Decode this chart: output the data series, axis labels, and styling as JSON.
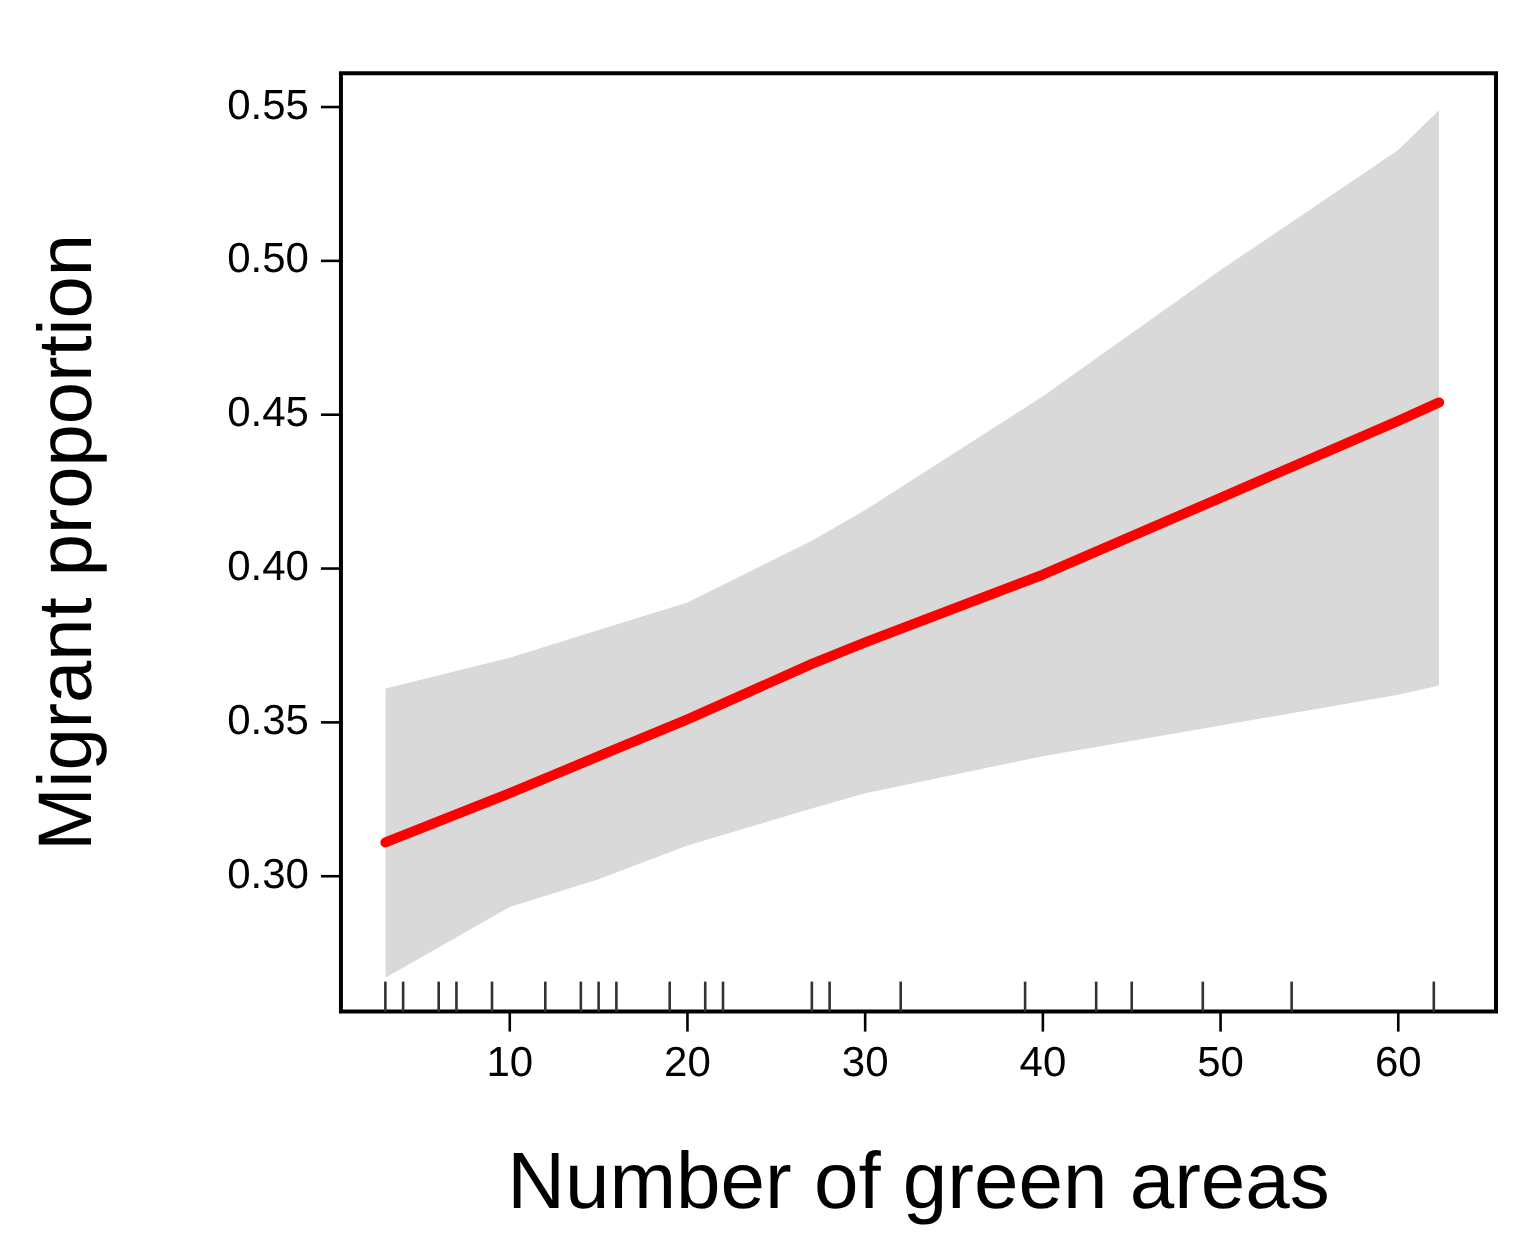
{
  "chart_data": {
    "type": "line",
    "xlabel": "Number of green areas",
    "ylabel": "Migrant proportion",
    "xlim": [
      0.5,
      65.5
    ],
    "ylim": [
      0.256,
      0.561
    ],
    "xticks": [
      {
        "value": 3,
        "label": null
      },
      {
        "value": 4,
        "label": null
      },
      {
        "value": 6,
        "label": null
      },
      {
        "value": 7,
        "label": null
      },
      {
        "value": 9,
        "label": null
      },
      10,
      {
        "value": 12,
        "label": null
      },
      {
        "value": 14,
        "label": null
      },
      {
        "value": 15,
        "label": null
      },
      {
        "value": 16,
        "label": null
      },
      {
        "value": 19,
        "label": null
      },
      20,
      {
        "value": 21,
        "label": null
      },
      {
        "value": 22,
        "label": null
      },
      {
        "value": 27,
        "label": null
      },
      {
        "value": 28,
        "label": null
      },
      30,
      {
        "value": 32,
        "label": null
      },
      {
        "value": 39,
        "label": null
      },
      40,
      {
        "value": 43,
        "label": null
      },
      {
        "value": 45,
        "label": null
      },
      {
        "value": 49,
        "label": null
      },
      50,
      {
        "value": 54,
        "label": null
      },
      60,
      {
        "value": 62,
        "label": null
      }
    ],
    "yticks": [
      {
        "value": 0.3,
        "label": "0.30"
      },
      0.35,
      {
        "value": 0.4,
        "label": "0.40"
      },
      0.45,
      {
        "value": 0.5,
        "label": "0.50"
      },
      0.55
    ],
    "series": [
      {
        "color": "#ff0000",
        "x": [
          3,
          10,
          15,
          20,
          27,
          30,
          40,
          50,
          60,
          62.3
        ],
        "values": [
          0.311,
          0.327,
          0.339,
          0.351,
          0.369,
          0.376,
          0.398,
          0.423,
          0.448,
          0.454
        ],
        "lower": [
          0.267,
          0.29,
          0.299,
          0.31,
          0.322,
          0.327,
          0.339,
          0.349,
          0.359,
          0.362
        ],
        "upper": [
          0.361,
          0.371,
          0.38,
          0.389,
          0.409,
          0.419,
          0.456,
          0.497,
          0.536,
          0.549
        ]
      }
    ],
    "legend": false,
    "marker": "none",
    "line_style": "solid"
  }
}
